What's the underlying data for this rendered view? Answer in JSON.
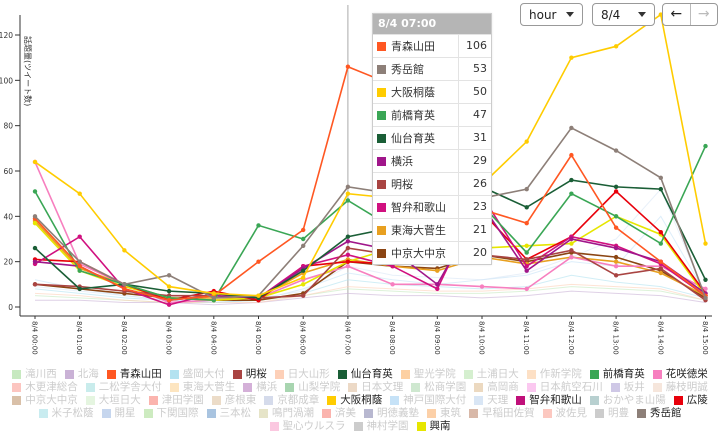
{
  "controls": {
    "unit": "hour",
    "date": "8/4",
    "prev": "←",
    "next": "→"
  },
  "tooltip": {
    "title": "8/4 07:00",
    "rows": [
      {
        "name": "青森山田",
        "value": "106",
        "color": "#ff5722"
      },
      {
        "name": "秀岳館",
        "value": "53",
        "color": "#8d7f78"
      },
      {
        "name": "大阪桐蔭",
        "value": "50",
        "color": "#ffcc00"
      },
      {
        "name": "前橋育英",
        "value": "47",
        "color": "#3aa655"
      },
      {
        "name": "仙台育英",
        "value": "31",
        "color": "#1a5e36"
      },
      {
        "name": "横浜",
        "value": "29",
        "color": "#a0168a"
      },
      {
        "name": "明桜",
        "value": "26",
        "color": "#a94442"
      },
      {
        "name": "智弁和歌山",
        "value": "23",
        "color": "#d0107f"
      },
      {
        "name": "東海大菅生",
        "value": "21",
        "color": "#e8a020"
      },
      {
        "name": "中京大中京",
        "value": "20",
        "color": "#8b4513"
      }
    ]
  },
  "chart_data": {
    "type": "line",
    "ylabel": "話題量(ツイート数)",
    "ylim": [
      0,
      130
    ],
    "yticks": [
      0,
      20,
      40,
      60,
      80,
      100,
      120
    ],
    "x": [
      "8/4 00:00",
      "8/4 01:00",
      "8/4 02:00",
      "8/4 03:00",
      "8/4 04:00",
      "8/4 05:00",
      "8/4 06:00",
      "8/4 07:00",
      "8/4 08:00",
      "8/4 09:00",
      "8/4 10:00",
      "8/4 11:00",
      "8/4 12:00",
      "8/4 13:00",
      "8/4 14:00",
      "8/4 15:00"
    ],
    "highlight_x": "8/4 07:00",
    "series": [
      {
        "name": "滝川西",
        "color": "#c7e9c0",
        "faded": true,
        "values": [
          5,
          4,
          3,
          2,
          2,
          3,
          5,
          8,
          7,
          6,
          6,
          7,
          9,
          8,
          7,
          3
        ]
      },
      {
        "name": "北海",
        "color": "#cab2d6",
        "faded": true,
        "values": [
          3,
          3,
          2,
          2,
          1,
          2,
          4,
          6,
          5,
          5,
          4,
          5,
          7,
          6,
          5,
          2
        ]
      },
      {
        "name": "盛岡大付",
        "color": "#b3e2f0",
        "faded": true,
        "values": [
          8,
          6,
          4,
          3,
          2,
          3,
          6,
          12,
          10,
          9,
          8,
          9,
          14,
          11,
          9,
          4
        ]
      },
      {
        "name": "日大山形",
        "color": "#fdd0b8",
        "faded": true,
        "values": [
          6,
          5,
          3,
          2,
          2,
          2,
          5,
          9,
          8,
          7,
          7,
          8,
          10,
          9,
          8,
          3
        ]
      },
      {
        "name": "神戸国際大付",
        "color": "#c6e2f7",
        "faded": true,
        "values": [
          12,
          8,
          5,
          3,
          2,
          3,
          8,
          15,
          12,
          10,
          12,
          14,
          20,
          18,
          40,
          6
        ]
      },
      {
        "name": "天理",
        "color": "#d9e6f5",
        "faded": true,
        "values": [
          9,
          7,
          5,
          3,
          3,
          4,
          7,
          18,
          14,
          13,
          12,
          15,
          22,
          30,
          52,
          5
        ]
      },
      {
        "name": "中京大中京",
        "color": "#8b4513",
        "values": [
          10,
          8,
          6,
          4,
          3,
          3,
          6,
          20,
          18,
          17,
          23,
          20,
          24,
          22,
          16,
          4
        ]
      },
      {
        "name": "東海大菅生",
        "color": "#e8a020",
        "values": [
          38,
          17,
          10,
          4,
          4,
          4,
          15,
          21,
          18,
          16,
          22,
          19,
          22,
          20,
          15,
          5
        ]
      },
      {
        "name": "花咲徳栄",
        "color": "#f77fbf",
        "values": [
          64,
          19,
          10,
          2,
          3,
          4,
          12,
          18,
          10,
          10,
          9,
          8,
          22,
          18,
          18,
          8
        ]
      },
      {
        "name": "興南",
        "color": "#e6e600",
        "values": [
          37,
          16,
          9,
          4,
          3,
          4,
          10,
          20,
          26,
          27,
          26,
          27,
          28,
          40,
          32,
          5
        ]
      },
      {
        "name": "広陵",
        "color": "#e8000b",
        "values": [
          21,
          20,
          10,
          3,
          7,
          3,
          18,
          20,
          19,
          20,
          42,
          21,
          31,
          51,
          33,
          6
        ]
      },
      {
        "name": "智弁和歌山",
        "color": "#d0107f",
        "values": [
          19,
          31,
          8,
          1,
          6,
          4,
          18,
          23,
          18,
          8,
          49,
          18,
          31,
          27,
          19,
          5
        ]
      },
      {
        "name": "明桜",
        "color": "#a94442",
        "values": [
          10,
          9,
          7,
          5,
          5,
          4,
          5,
          26,
          23,
          24,
          23,
          21,
          25,
          14,
          17,
          3
        ]
      },
      {
        "name": "横浜",
        "color": "#a0168a",
        "values": [
          20,
          18,
          8,
          3,
          5,
          4,
          17,
          29,
          25,
          10,
          45,
          16,
          30,
          26,
          20,
          6
        ]
      },
      {
        "name": "仙台育英",
        "color": "#1a5e36",
        "values": [
          26,
          8,
          10,
          7,
          6,
          4,
          16,
          31,
          35,
          40,
          53,
          44,
          56,
          53,
          52,
          12
        ]
      },
      {
        "name": "前橋育英",
        "color": "#3aa655",
        "values": [
          51,
          16,
          10,
          4,
          3,
          36,
          30,
          47,
          35,
          30,
          45,
          24,
          50,
          40,
          28,
          71
        ]
      },
      {
        "name": "青森山田",
        "color": "#ff5722",
        "values": [
          39,
          18,
          8,
          3,
          5,
          20,
          34,
          106,
          98,
          80,
          43,
          37,
          67,
          35,
          20,
          5
        ]
      },
      {
        "name": "秀岳館",
        "color": "#8d7f78",
        "values": [
          40,
          20,
          10,
          14,
          4,
          5,
          27,
          53,
          50,
          48,
          48,
          52,
          79,
          69,
          57,
          4
        ]
      },
      {
        "name": "大阪桐蔭",
        "color": "#ffcc00",
        "values": [
          64,
          50,
          25,
          9,
          6,
          5,
          13,
          50,
          48,
          50,
          54,
          73,
          110,
          115,
          129,
          28
        ]
      }
    ]
  },
  "legend": [
    {
      "name": "滝川西",
      "color": "#c7e9c0",
      "on": false
    },
    {
      "name": "北海",
      "color": "#cab2d6",
      "on": false
    },
    {
      "name": "青森山田",
      "color": "#ff5722",
      "on": true
    },
    {
      "name": "盛岡大付",
      "color": "#b3e2f0",
      "on": false
    },
    {
      "name": "明桜",
      "color": "#a94442",
      "on": true
    },
    {
      "name": "日大山形",
      "color": "#fdd0b8",
      "on": false
    },
    {
      "name": "仙台育英",
      "color": "#1a5e36",
      "on": true
    },
    {
      "name": "聖光学院",
      "color": "#fdd0a2",
      "on": false
    },
    {
      "name": "土浦日大",
      "color": "#d5efcf",
      "on": false
    },
    {
      "name": "作新学院",
      "color": "#fde0c5",
      "on": false
    },
    {
      "name": "前橋育英",
      "color": "#3aa655",
      "on": true
    },
    {
      "name": "花咲徳栄",
      "color": "#f77fbf",
      "on": true
    },
    {
      "name": "木更津総合",
      "color": "#fcc5c0",
      "on": false
    },
    {
      "name": "二松学舎大付",
      "color": "#c9ecec",
      "on": false
    },
    {
      "name": "東海大菅生",
      "color": "#fde5c0",
      "on": false
    },
    {
      "name": "横浜",
      "color": "#d4b0d8",
      "on": false
    },
    {
      "name": "山梨学院",
      "color": "#a8d5b0",
      "on": false
    },
    {
      "name": "日本文理",
      "color": "#ecd9c6",
      "on": false
    },
    {
      "name": "松商学園",
      "color": "#cfe8d0",
      "on": false
    },
    {
      "name": "高岡商",
      "color": "#ecd9c0",
      "on": false
    },
    {
      "name": "日本航空石川",
      "color": "#fbc8f0",
      "on": false
    },
    {
      "name": "坂井",
      "color": "#cfc8e6",
      "on": false
    },
    {
      "name": "藤枝明誠",
      "color": "#f6e6dc",
      "on": false
    },
    {
      "name": "中京大中京",
      "color": "#d9c0a8",
      "on": false
    },
    {
      "name": "大垣日大",
      "color": "#e5f5e0",
      "on": false
    },
    {
      "name": "津田学園",
      "color": "#fbb4ae",
      "on": false
    },
    {
      "name": "彦根東",
      "color": "#ecdcc8",
      "on": false
    },
    {
      "name": "京都成章",
      "color": "#d5dbeb",
      "on": false
    },
    {
      "name": "大阪桐蔭",
      "color": "#ffcc00",
      "on": true
    },
    {
      "name": "神戸国際大付",
      "color": "#c6e2f7",
      "on": false
    },
    {
      "name": "天理",
      "color": "#d9e6f5",
      "on": false
    },
    {
      "name": "智弁和歌山",
      "color": "#c0107a",
      "on": true
    },
    {
      "name": "おかやま山陽",
      "color": "#b8d0d0",
      "on": false
    },
    {
      "name": "広陵",
      "color": "#e8000b",
      "on": true
    },
    {
      "name": "米子松蔭",
      "color": "#c9ecf0",
      "on": false
    },
    {
      "name": "開星",
      "color": "#c6d6ee",
      "on": false
    },
    {
      "name": "下関国際",
      "color": "#cdebc0",
      "on": false
    },
    {
      "name": "三本松",
      "color": "#a9c4e0",
      "on": false
    },
    {
      "name": "鳴門渦潮",
      "color": "#e6e4c8",
      "on": false
    },
    {
      "name": "済美",
      "color": "#fbb4ae",
      "on": false
    },
    {
      "name": "明徳義塾",
      "color": "#b8b8d0",
      "on": false
    },
    {
      "name": "東筑",
      "color": "#fcd0a8",
      "on": false
    },
    {
      "name": "早稲田佐賀",
      "color": "#d8b8a8",
      "on": false
    },
    {
      "name": "波佐見",
      "color": "#fcc8c0",
      "on": false
    },
    {
      "name": "明豊",
      "color": "#cccccc",
      "on": false
    },
    {
      "name": "秀岳館",
      "color": "#8d7f78",
      "on": true
    },
    {
      "name": "聖心ウルスラ",
      "color": "#fbc8e0",
      "on": false
    },
    {
      "name": "神村学園",
      "color": "#cccccc",
      "on": false
    },
    {
      "name": "興南",
      "color": "#e6e600",
      "on": true
    }
  ]
}
